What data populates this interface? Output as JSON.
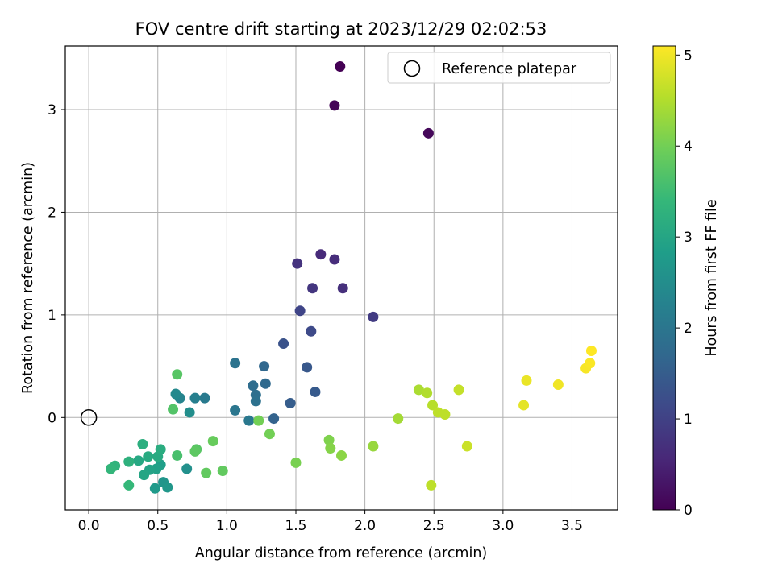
{
  "chart_data": {
    "type": "scatter",
    "title": "FOV centre drift starting at 2023/12/29 02:02:53",
    "xlabel": "Angular distance from reference (arcmin)",
    "ylabel": "Rotation from reference (arcmin)",
    "xlim": [
      -0.17,
      3.83
    ],
    "ylim": [
      -0.9,
      3.62
    ],
    "xticks": [
      0.0,
      0.5,
      1.0,
      1.5,
      2.0,
      2.5,
      3.0,
      3.5
    ],
    "xtick_labels": [
      "0.0",
      "0.5",
      "1.0",
      "1.5",
      "2.0",
      "2.5",
      "3.0",
      "3.5"
    ],
    "yticks": [
      0,
      1,
      2,
      3
    ],
    "ytick_labels": [
      "0",
      "1",
      "2",
      "3"
    ],
    "grid": true,
    "legend": {
      "position": "top-right",
      "entries": [
        {
          "label": "Reference platepar",
          "marker": "open-circle"
        }
      ]
    },
    "reference_point": {
      "x": 0.0,
      "y": 0.0
    },
    "colorbar": {
      "label": "Hours from first FF file",
      "colormap": "viridis",
      "range": [
        0,
        5.1
      ],
      "ticks": [
        0,
        1,
        2,
        3,
        4,
        5
      ],
      "tick_labels": [
        "0",
        "1",
        "2",
        "3",
        "4",
        "5"
      ]
    },
    "points": [
      {
        "x": 1.82,
        "y": 3.42,
        "c": 0.0
      },
      {
        "x": 1.78,
        "y": 3.04,
        "c": 0.05
      },
      {
        "x": 2.46,
        "y": 2.77,
        "c": 0.1
      },
      {
        "x": 1.68,
        "y": 1.59,
        "c": 0.6
      },
      {
        "x": 1.78,
        "y": 1.54,
        "c": 0.65
      },
      {
        "x": 1.51,
        "y": 1.5,
        "c": 0.75
      },
      {
        "x": 1.62,
        "y": 1.26,
        "c": 0.8
      },
      {
        "x": 1.84,
        "y": 1.26,
        "c": 0.7
      },
      {
        "x": 2.06,
        "y": 0.98,
        "c": 0.9
      },
      {
        "x": 1.53,
        "y": 1.04,
        "c": 1.05
      },
      {
        "x": 1.61,
        "y": 0.84,
        "c": 1.15
      },
      {
        "x": 1.41,
        "y": 0.72,
        "c": 1.3
      },
      {
        "x": 1.58,
        "y": 0.49,
        "c": 1.4
      },
      {
        "x": 1.64,
        "y": 0.25,
        "c": 1.45
      },
      {
        "x": 1.46,
        "y": 0.14,
        "c": 1.5
      },
      {
        "x": 1.34,
        "y": -0.01,
        "c": 1.6
      },
      {
        "x": 1.27,
        "y": 0.5,
        "c": 1.7
      },
      {
        "x": 1.28,
        "y": 0.33,
        "c": 1.75
      },
      {
        "x": 1.19,
        "y": 0.31,
        "c": 1.8
      },
      {
        "x": 1.21,
        "y": 0.22,
        "c": 1.85
      },
      {
        "x": 1.21,
        "y": 0.16,
        "c": 1.9
      },
      {
        "x": 1.06,
        "y": 0.53,
        "c": 1.95
      },
      {
        "x": 1.06,
        "y": 0.07,
        "c": 2.0
      },
      {
        "x": 1.16,
        "y": -0.03,
        "c": 2.05
      },
      {
        "x": 0.84,
        "y": 0.19,
        "c": 2.1
      },
      {
        "x": 0.77,
        "y": 0.19,
        "c": 2.2
      },
      {
        "x": 0.66,
        "y": 0.19,
        "c": 2.3
      },
      {
        "x": 0.63,
        "y": 0.23,
        "c": 2.4
      },
      {
        "x": 0.73,
        "y": 0.05,
        "c": 2.5
      },
      {
        "x": 0.71,
        "y": -0.5,
        "c": 2.55
      },
      {
        "x": 0.54,
        "y": -0.63,
        "c": 2.65
      },
      {
        "x": 0.57,
        "y": -0.68,
        "c": 2.7
      },
      {
        "x": 0.48,
        "y": -0.69,
        "c": 2.75
      },
      {
        "x": 0.52,
        "y": -0.46,
        "c": 2.85
      },
      {
        "x": 0.49,
        "y": -0.5,
        "c": 2.9
      },
      {
        "x": 0.44,
        "y": -0.51,
        "c": 2.95
      },
      {
        "x": 0.4,
        "y": -0.56,
        "c": 3.0
      },
      {
        "x": 0.36,
        "y": -0.42,
        "c": 3.05
      },
      {
        "x": 0.43,
        "y": -0.38,
        "c": 3.1
      },
      {
        "x": 0.5,
        "y": -0.38,
        "c": 3.1
      },
      {
        "x": 0.52,
        "y": -0.31,
        "c": 3.15
      },
      {
        "x": 0.39,
        "y": -0.26,
        "c": 3.2
      },
      {
        "x": 0.29,
        "y": -0.43,
        "c": 3.25
      },
      {
        "x": 0.19,
        "y": -0.47,
        "c": 3.3
      },
      {
        "x": 0.16,
        "y": -0.5,
        "c": 3.35
      },
      {
        "x": 0.29,
        "y": -0.66,
        "c": 3.4
      },
      {
        "x": 0.64,
        "y": -0.37,
        "c": 3.6
      },
      {
        "x": 0.61,
        "y": 0.08,
        "c": 3.7
      },
      {
        "x": 0.64,
        "y": 0.42,
        "c": 3.75
      },
      {
        "x": 0.78,
        "y": -0.31,
        "c": 3.75
      },
      {
        "x": 0.77,
        "y": -0.33,
        "c": 3.8
      },
      {
        "x": 0.85,
        "y": -0.54,
        "c": 3.85
      },
      {
        "x": 0.97,
        "y": -0.52,
        "c": 3.85
      },
      {
        "x": 0.9,
        "y": -0.23,
        "c": 3.9
      },
      {
        "x": 1.23,
        "y": -0.03,
        "c": 4.0
      },
      {
        "x": 1.31,
        "y": -0.16,
        "c": 4.0
      },
      {
        "x": 1.5,
        "y": -0.44,
        "c": 4.05
      },
      {
        "x": 1.74,
        "y": -0.22,
        "c": 4.1
      },
      {
        "x": 1.75,
        "y": -0.3,
        "c": 4.15
      },
      {
        "x": 1.83,
        "y": -0.37,
        "c": 4.2
      },
      {
        "x": 2.06,
        "y": -0.28,
        "c": 4.3
      },
      {
        "x": 2.24,
        "y": -0.01,
        "c": 4.4
      },
      {
        "x": 2.39,
        "y": 0.27,
        "c": 4.45
      },
      {
        "x": 2.45,
        "y": 0.24,
        "c": 4.5
      },
      {
        "x": 2.49,
        "y": 0.12,
        "c": 4.55
      },
      {
        "x": 2.53,
        "y": 0.05,
        "c": 4.6
      },
      {
        "x": 2.58,
        "y": 0.03,
        "c": 4.6
      },
      {
        "x": 2.48,
        "y": -0.66,
        "c": 4.6
      },
      {
        "x": 2.68,
        "y": 0.27,
        "c": 4.65
      },
      {
        "x": 2.74,
        "y": -0.28,
        "c": 4.7
      },
      {
        "x": 3.15,
        "y": 0.12,
        "c": 4.9
      },
      {
        "x": 3.17,
        "y": 0.36,
        "c": 4.95
      },
      {
        "x": 3.4,
        "y": 0.32,
        "c": 5.0
      },
      {
        "x": 3.6,
        "y": 0.48,
        "c": 5.05
      },
      {
        "x": 3.63,
        "y": 0.53,
        "c": 5.08
      },
      {
        "x": 3.64,
        "y": 0.65,
        "c": 5.1
      }
    ]
  }
}
